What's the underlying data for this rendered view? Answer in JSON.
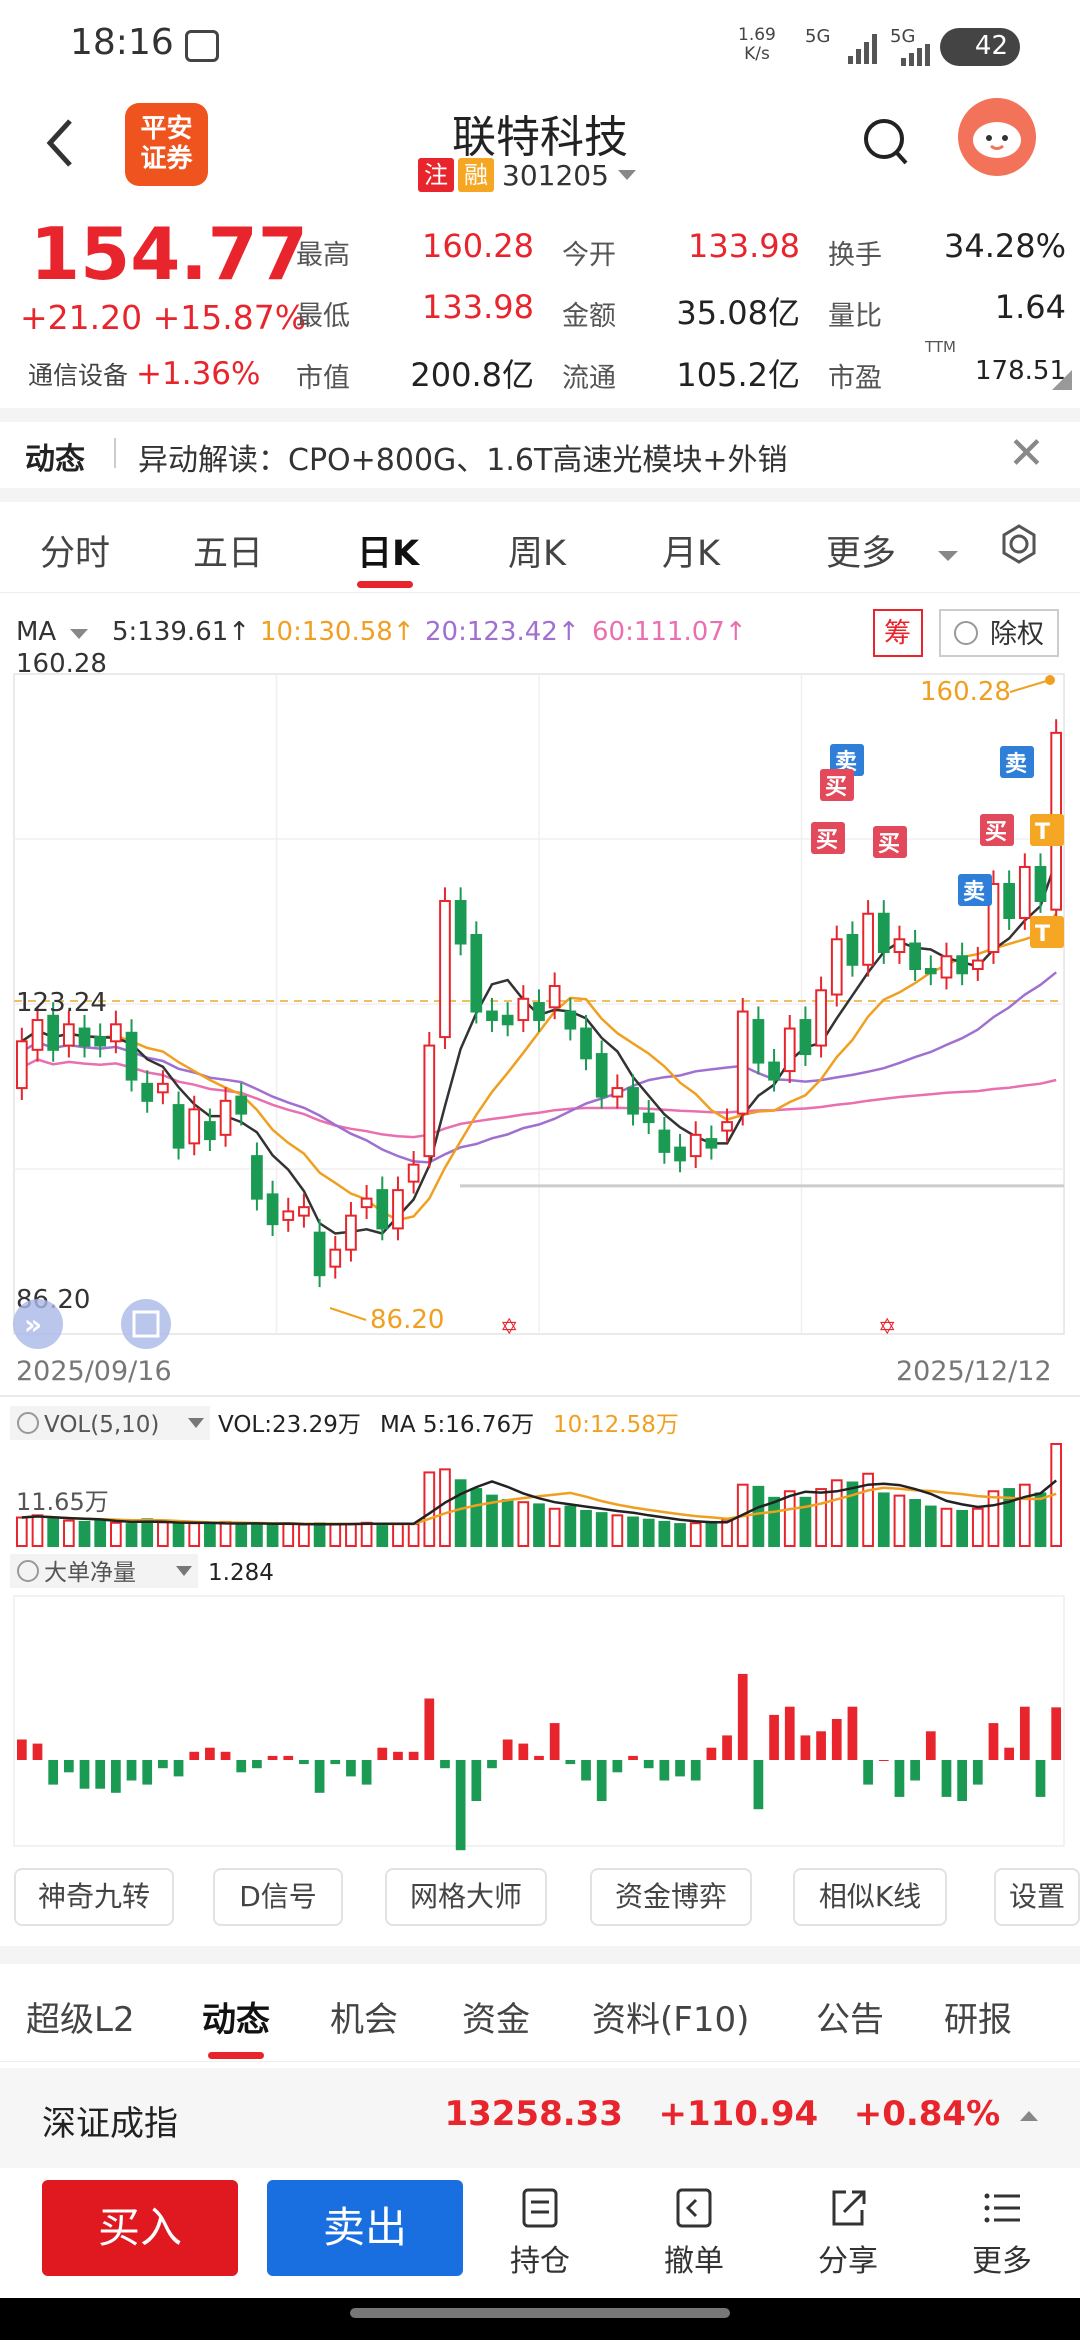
{
  "status": {
    "time": "18:16",
    "speed_value": "1.69",
    "speed_unit": "K/s",
    "net1": "5G",
    "net2": "5G",
    "battery": "42"
  },
  "header": {
    "back_icon": "chevron-left-icon",
    "logo_text_1": "平安",
    "logo_text_2": "证券",
    "title": "联特科技",
    "tag1": "注",
    "tag2": "融",
    "code": "301205"
  },
  "quote": {
    "price": "154.77",
    "change": "+21.20",
    "change_pct": "+15.87%",
    "sector_name": "通信设备",
    "sector_pct": "+1.36%",
    "fields": [
      {
        "label": "最高",
        "value": "160.28",
        "color": "red"
      },
      {
        "label": "今开",
        "value": "133.98",
        "color": "red"
      },
      {
        "label": "换手",
        "value": "34.28%",
        "color": "dark"
      },
      {
        "label": "最低",
        "value": "133.98",
        "color": "red"
      },
      {
        "label": "金额",
        "value": "35.08亿",
        "color": "dark"
      },
      {
        "label": "量比",
        "value": "1.64",
        "color": "dark"
      },
      {
        "label": "市值",
        "value": "200.8亿",
        "color": "dark"
      },
      {
        "label": "流通",
        "value": "105.2亿",
        "color": "dark"
      },
      {
        "label": "市盈",
        "value": "178.51",
        "color": "dark"
      }
    ],
    "pe_sup": "TTM"
  },
  "news": {
    "tag": "动态",
    "text": "异动解读：CPO+800G、1.6T高速光模块+外销"
  },
  "tabs": [
    "分时",
    "五日",
    "日K",
    "周K",
    "月K",
    "更多"
  ],
  "ma": {
    "label": "MA",
    "ma5": "5:139.61↑",
    "ma10": "10:130.58↑",
    "ma20": "20:123.42↑",
    "ma60": "60:111.07↑",
    "chip_btn": "筹",
    "adjust_btn": "除权"
  },
  "chart_labels": {
    "high_label": "160.28",
    "mid_label": "123.24",
    "low_label": "86.20",
    "high_marker": "160.28",
    "low_marker": "86.20",
    "start_date": "2025/09/16",
    "end_date": "2025/12/12"
  },
  "signals": [
    {
      "text": "卖",
      "kind": "sell"
    },
    {
      "text": "买",
      "kind": "buy"
    },
    {
      "text": "买",
      "kind": "buy"
    },
    {
      "text": "买",
      "kind": "buy"
    },
    {
      "text": "卖",
      "kind": "sell"
    },
    {
      "text": "卖",
      "kind": "sell"
    },
    {
      "text": "买",
      "kind": "buy"
    },
    {
      "text": "T",
      "kind": "t"
    },
    {
      "text": "T",
      "kind": "t"
    }
  ],
  "vol": {
    "selector": "VOL(5,10)",
    "vol_text": "VOL:23.29万",
    "ma5_text": "MA 5:16.76万",
    "ma10_text": "10:12.58万",
    "axis_label": "11.65万"
  },
  "flow": {
    "selector": "大单净量",
    "value": "1.284"
  },
  "tools": [
    "神奇九转",
    "D信号",
    "网格大师",
    "资金博弈",
    "相似K线",
    "设置"
  ],
  "bottom_tabs": [
    "超级L2",
    "动态",
    "机会",
    "资金",
    "资料(F10)",
    "公告",
    "研报"
  ],
  "index": {
    "name": "深证成指",
    "value": "13258.33",
    "change": "+110.94",
    "pct": "+0.84%"
  },
  "actions": {
    "buy": "买入",
    "sell": "卖出",
    "items": [
      "持仓",
      "撤单",
      "分享",
      "更多"
    ]
  },
  "chart_data": {
    "type": "candlestick",
    "x_start": "2025/09/16",
    "x_end": "2025/12/12",
    "ylim": [
      86.2,
      160.28
    ],
    "candles": [
      {
        "o": 113.0,
        "c": 118.5
      },
      {
        "o": 117.5,
        "c": 121.0
      },
      {
        "o": 121.5,
        "c": 117.5
      },
      {
        "o": 118.0,
        "c": 120.5
      },
      {
        "o": 120.0,
        "c": 118.0
      },
      {
        "o": 119.0,
        "c": 118.0
      },
      {
        "o": 118.5,
        "c": 120.5
      },
      {
        "o": 119.5,
        "c": 114.0
      },
      {
        "o": 113.5,
        "c": 111.5
      },
      {
        "o": 112.5,
        "c": 113.5
      },
      {
        "o": 111.0,
        "c": 106.0
      },
      {
        "o": 106.5,
        "c": 110.5
      },
      {
        "o": 109.0,
        "c": 107.0
      },
      {
        "o": 107.5,
        "c": 111.5
      },
      {
        "o": 112.0,
        "c": 110.0
      },
      {
        "o": 105.0,
        "c": 100.0
      },
      {
        "o": 100.5,
        "c": 97.0
      },
      {
        "o": 97.5,
        "c": 98.5
      },
      {
        "o": 98.0,
        "c": 99.0
      },
      {
        "o": 96.0,
        "c": 91.0
      },
      {
        "o": 92.0,
        "c": 94.0
      },
      {
        "o": 94.0,
        "c": 98.0
      },
      {
        "o": 99.0,
        "c": 100.0
      },
      {
        "o": 101.0,
        "c": 96.5
      },
      {
        "o": 96.5,
        "c": 101.0
      },
      {
        "o": 102.0,
        "c": 104.0
      },
      {
        "o": 105.0,
        "c": 118.0
      },
      {
        "o": 119.0,
        "c": 135.0
      },
      {
        "o": 135.0,
        "c": 130.0
      },
      {
        "o": 131.0,
        "c": 122.0
      },
      {
        "o": 122.0,
        "c": 121.0
      },
      {
        "o": 121.5,
        "c": 120.5
      },
      {
        "o": 121.0,
        "c": 123.5
      },
      {
        "o": 123.0,
        "c": 121.0
      },
      {
        "o": 122.5,
        "c": 125.0
      },
      {
        "o": 122.0,
        "c": 120.0
      },
      {
        "o": 120.0,
        "c": 116.5
      },
      {
        "o": 117.0,
        "c": 112.0
      },
      {
        "o": 112.0,
        "c": 113.0
      },
      {
        "o": 113.0,
        "c": 110.0
      },
      {
        "o": 110.0,
        "c": 109.0
      },
      {
        "o": 108.0,
        "c": 105.5
      },
      {
        "o": 106.0,
        "c": 104.5
      },
      {
        "o": 105.0,
        "c": 107.5
      },
      {
        "o": 107.0,
        "c": 106.0
      },
      {
        "o": 108.0,
        "c": 109.0
      },
      {
        "o": 110.0,
        "c": 122.0
      },
      {
        "o": 121.0,
        "c": 116.0
      },
      {
        "o": 116.0,
        "c": 114.0
      },
      {
        "o": 115.0,
        "c": 120.0
      },
      {
        "o": 121.0,
        "c": 117.0
      },
      {
        "o": 118.0,
        "c": 124.5
      },
      {
        "o": 124.0,
        "c": 130.5
      },
      {
        "o": 131.0,
        "c": 127.5
      },
      {
        "o": 127.5,
        "c": 133.5
      },
      {
        "o": 133.5,
        "c": 129.0
      },
      {
        "o": 129.0,
        "c": 130.5
      },
      {
        "o": 130.0,
        "c": 127.0
      },
      {
        "o": 127.0,
        "c": 126.5
      },
      {
        "o": 126.0,
        "c": 128.5
      },
      {
        "o": 128.5,
        "c": 126.5
      },
      {
        "o": 127.0,
        "c": 128.0
      },
      {
        "o": 129.0,
        "c": 137.0
      },
      {
        "o": 137.0,
        "c": 133.0
      },
      {
        "o": 133.0,
        "c": 139.0
      },
      {
        "o": 139.0,
        "c": 135.0
      },
      {
        "o": 133.98,
        "c": 154.77
      }
    ],
    "volume": [
      6.5,
      7.0,
      6.2,
      5.8,
      5.5,
      5.9,
      5.3,
      5.0,
      6.1,
      5.4,
      4.9,
      5.2,
      4.8,
      5.5,
      5.3,
      5.0,
      4.8,
      5.0,
      4.9,
      5.2,
      4.9,
      5.0,
      5.3,
      5.1,
      5.0,
      5.0,
      16.8,
      17.5,
      15.0,
      13.0,
      11.5,
      10.5,
      10.0,
      9.5,
      8.5,
      9.0,
      8.0,
      7.5,
      7.0,
      6.5,
      6.0,
      5.5,
      5.0,
      5.2,
      5.5,
      6.0,
      14.0,
      13.5,
      11.0,
      12.5,
      11.0,
      13.0,
      15.0,
      14.5,
      16.5,
      12.0,
      11.5,
      10.5,
      9.0,
      8.5,
      8.0,
      8.5,
      12.5,
      13.0,
      14.0,
      12.0,
      23.29
    ],
    "net_flow": [
      0.5,
      0.4,
      -0.6,
      -0.3,
      -0.7,
      -0.7,
      -0.8,
      -0.5,
      -0.6,
      -0.2,
      -0.4,
      0.2,
      0.3,
      0.2,
      -0.3,
      -0.2,
      0.1,
      0.1,
      -0.1,
      -0.8,
      -0.1,
      -0.4,
      -0.6,
      0.3,
      0.2,
      0.2,
      1.5,
      -0.2,
      -2.2,
      -1.0,
      -0.2,
      0.5,
      0.4,
      0.1,
      0.9,
      -0.1,
      -0.5,
      -1.0,
      -0.3,
      0.1,
      -0.2,
      -0.5,
      -0.4,
      -0.5,
      0.3,
      0.6,
      2.1,
      -1.2,
      1.1,
      1.3,
      0.6,
      0.7,
      1.0,
      1.3,
      -0.6,
      0.0,
      -0.9,
      -0.5,
      0.7,
      -0.9,
      -1.0,
      -0.6,
      0.9,
      0.3,
      1.3,
      -0.9,
      1.284
    ],
    "ma_series_names": [
      "MA5",
      "MA10",
      "MA20",
      "MA60"
    ]
  },
  "colors": {
    "up": "#e8252c",
    "down": "#1a9a52",
    "ma5": "#333333",
    "ma10": "#f0a020",
    "ma20": "#a070d0",
    "ma60": "#ea6fb0",
    "sell_tag": "#2f7fd8",
    "buy_tag": "#e24a5c",
    "t_tag": "#f5a623"
  }
}
